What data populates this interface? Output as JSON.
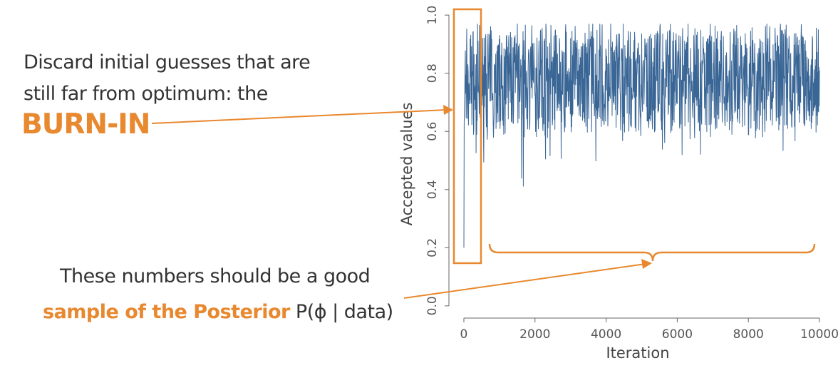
{
  "annotations": {
    "burn_in_line1": "Discard initial guesses that are",
    "burn_in_line2": "still far from optimum: the",
    "burn_in_label": "BURN-IN",
    "posterior_line1": "These numbers should be a good",
    "posterior_highlight": "sample of the Posterior",
    "posterior_formula": "P(ϕ | data)"
  },
  "colors": {
    "trace": "#3a6696",
    "accent": "#e8882f",
    "axis": "#666666"
  },
  "chart_data": {
    "type": "line",
    "xlabel": "Iteration",
    "ylabel": "Accepted values",
    "xlim": [
      -300,
      10200
    ],
    "ylim": [
      -0.02,
      1.02
    ],
    "xticks": [
      "0",
      "2000",
      "4000",
      "6000",
      "8000",
      "10000"
    ],
    "xtick_values": [
      0,
      2000,
      4000,
      6000,
      8000,
      10000
    ],
    "yticks": [
      "0.0",
      "0.2",
      "0.4",
      "0.6",
      "0.8",
      "1.0"
    ],
    "ytick_values": [
      0.0,
      0.2,
      0.4,
      0.6,
      0.8,
      1.0
    ],
    "n_iterations": 10000,
    "initial_value": 0.2,
    "mean": 0.78,
    "range": [
      0.37,
      0.97
    ],
    "burn_in": [
      0,
      500
    ]
  }
}
